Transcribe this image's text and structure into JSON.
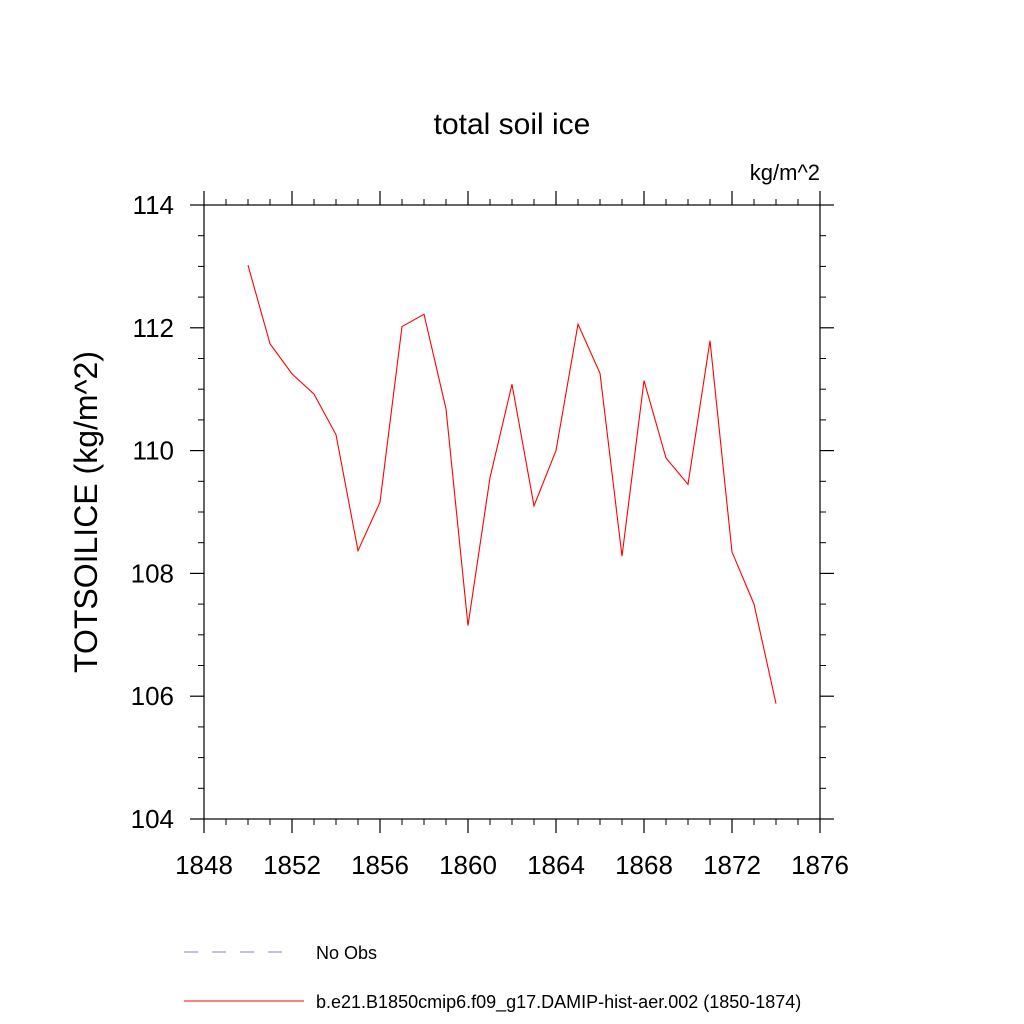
{
  "chart_data": {
    "type": "line",
    "title": "total soil ice",
    "units": "kg/m^2",
    "xlabel": "",
    "ylabel": "TOTSOILICE  (kg/m^2)",
    "xlim": [
      1848,
      1876
    ],
    "ylim": [
      104,
      114
    ],
    "x_ticks": [
      1848,
      1852,
      1856,
      1860,
      1864,
      1868,
      1872,
      1876
    ],
    "y_ticks": [
      104,
      106,
      108,
      110,
      112,
      114
    ],
    "grid": false,
    "legend_position": "bottom",
    "series": [
      {
        "name": "b.e21.B1850cmip6.f09_g17.DAMIP-hist-aer.002 (1850-1874)",
        "color": "#ff0000",
        "style": "solid",
        "x": [
          1850,
          1851,
          1852,
          1853,
          1854,
          1855,
          1856,
          1857,
          1858,
          1859,
          1860,
          1861,
          1862,
          1863,
          1864,
          1865,
          1866,
          1867,
          1868,
          1869,
          1870,
          1871,
          1872,
          1873,
          1874
        ],
        "y": [
          113.02,
          111.74,
          111.25,
          110.92,
          110.26,
          108.37,
          109.16,
          112.02,
          112.22,
          110.68,
          107.15,
          109.56,
          111.08,
          109.1,
          110.0,
          112.06,
          111.26,
          108.28,
          111.14,
          109.88,
          109.45,
          111.79,
          108.35,
          107.5,
          105.88
        ]
      },
      {
        "name": "No Obs",
        "color": "#8080c0",
        "style": "dashed",
        "x": [],
        "y": []
      }
    ]
  }
}
